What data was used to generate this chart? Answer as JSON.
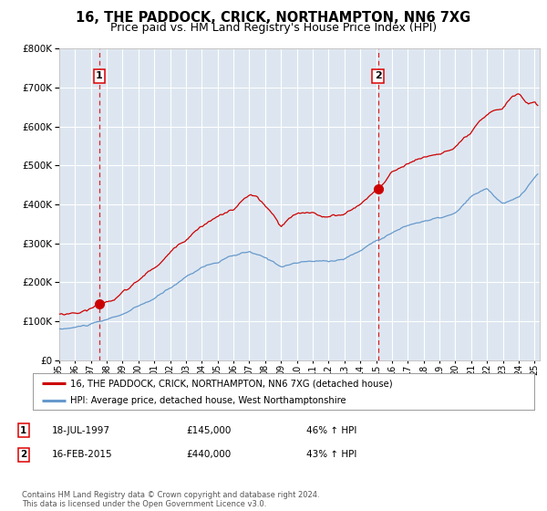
{
  "title": "16, THE PADDOCK, CRICK, NORTHAMPTON, NN6 7XG",
  "subtitle": "Price paid vs. HM Land Registry's House Price Index (HPI)",
  "legend_line1": "16, THE PADDOCK, CRICK, NORTHAMPTON, NN6 7XG (detached house)",
  "legend_line2": "HPI: Average price, detached house, West Northamptonshire",
  "annotation1_label": "1",
  "annotation1_date": "18-JUL-1997",
  "annotation1_price": "£145,000",
  "annotation1_hpi": "46% ↑ HPI",
  "annotation2_label": "2",
  "annotation2_date": "16-FEB-2015",
  "annotation2_price": "£440,000",
  "annotation2_hpi": "43% ↑ HPI",
  "footnote": "Contains HM Land Registry data © Crown copyright and database right 2024.\nThis data is licensed under the Open Government Licence v3.0.",
  "ylim": [
    0,
    800000
  ],
  "xlim_start": 1995.0,
  "xlim_end": 2025.3,
  "red_color": "#cc0000",
  "blue_color": "#6699cc",
  "dashed_color": "#dd0000",
  "background_color": "#ffffff",
  "plot_bg_color": "#dde6f0",
  "grid_color": "#ffffff",
  "sale1_x": 1997.54,
  "sale1_y": 145000,
  "sale2_x": 2015.12,
  "sale2_y": 440000,
  "title_fontsize": 10.5,
  "subtitle_fontsize": 9
}
